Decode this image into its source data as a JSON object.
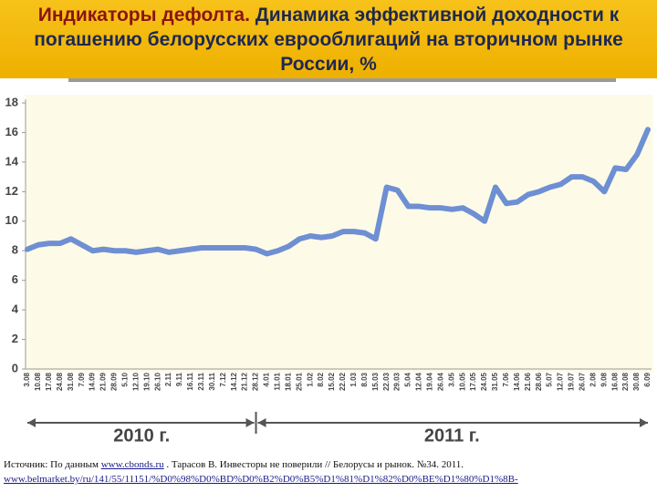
{
  "header": {
    "title_lead": "Индикаторы дефолта.",
    "title_rest": "Динамика эффективной доходности к погашению белорусских еврооблигаций на вторичном рынке России, %"
  },
  "chart_data": {
    "type": "line",
    "categories": [
      "3.08",
      "10.08",
      "17.08",
      "24.08",
      "31.08",
      "7.09",
      "14.09",
      "21.09",
      "28.09",
      "5.10",
      "12.10",
      "19.10",
      "26.10",
      "2.11",
      "9.11",
      "16.11",
      "23.11",
      "30.11",
      "7.12",
      "14.12",
      "21.12",
      "28.12",
      "4.01",
      "11.01",
      "18.01",
      "25.01",
      "1.02",
      "8.02",
      "15.02",
      "22.02",
      "1.03",
      "8.03",
      "15.03",
      "22.03",
      "29.03",
      "5.04",
      "12.04",
      "19.04",
      "26.04",
      "3.05",
      "10.05",
      "17.05",
      "24.05",
      "31.05",
      "7.06",
      "14.06",
      "21.06",
      "28.06",
      "5.07",
      "12.07",
      "19.07",
      "26.07",
      "2.08",
      "9.08",
      "16.08",
      "23.08",
      "30.08",
      "6.09"
    ],
    "values": [
      8.1,
      8.4,
      8.5,
      8.5,
      8.8,
      8.4,
      8.0,
      8.1,
      8.0,
      8.0,
      7.9,
      8.0,
      8.1,
      7.9,
      8.0,
      8.1,
      8.2,
      8.2,
      8.2,
      8.2,
      8.2,
      8.1,
      7.8,
      8.0,
      8.3,
      8.8,
      9.0,
      8.9,
      9.0,
      9.3,
      9.3,
      9.2,
      8.8,
      12.3,
      12.1,
      11.0,
      11.0,
      10.9,
      10.9,
      10.8,
      10.9,
      10.5,
      10.0,
      12.3,
      11.2,
      11.3,
      11.8,
      12.0,
      12.3,
      12.5,
      13.0,
      13.0,
      12.7,
      12.0,
      13.6,
      13.5,
      14.5,
      16.2
    ],
    "color": "#6f8fd3",
    "ylim": [
      0,
      18
    ],
    "yticks": [
      0,
      2,
      4,
      6,
      8,
      10,
      12,
      14,
      16,
      18
    ],
    "annotations": [
      "2010 г.",
      "2011 г."
    ]
  },
  "source": {
    "prefix": "Источник: По данным",
    "link1": "www.cbonds.ru",
    "rest": ". Тарасов В. Инвесторы не поверили // Белорусы и рынок. №34. 2011.",
    "link2": "www.belmarket.by/ru/141/55/11151/%D0%98%D0%BD%D0%B2%D0%B5%D1%81%D1%82%D0%BE%D1%80%D1%8B-"
  }
}
